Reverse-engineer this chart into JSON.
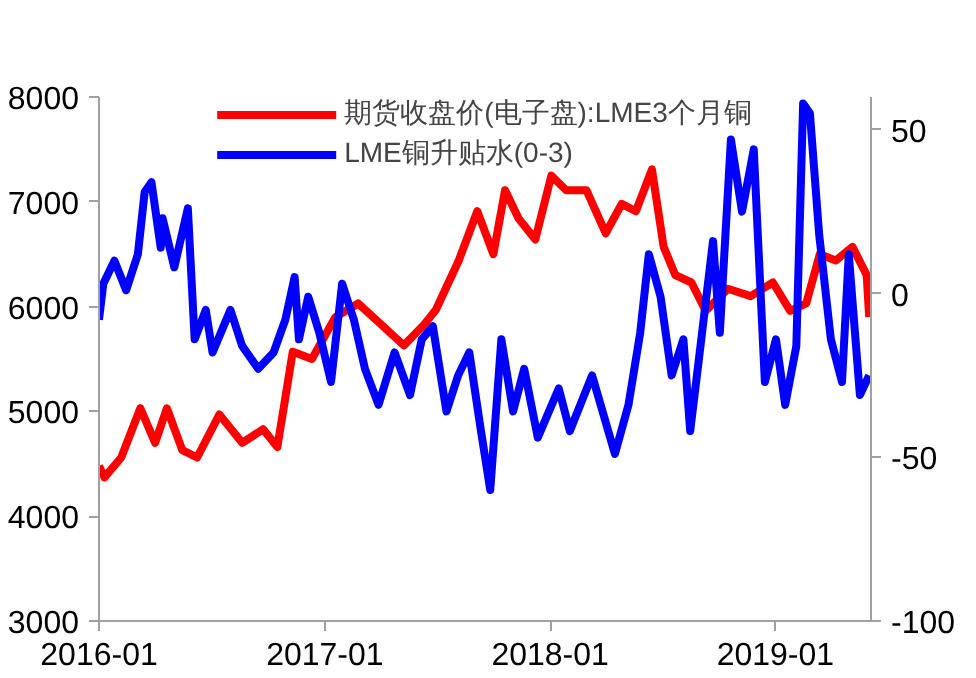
{
  "chart_data": {
    "type": "line",
    "legend": "top",
    "grid": false,
    "line_style": "solid",
    "marker": "none",
    "xlim": [
      "2016-01-01",
      "2019-06-05"
    ],
    "xticks": [
      "2016-01",
      "2017-01",
      "2018-01",
      "2019-01"
    ],
    "ylim": [
      3000,
      8000
    ],
    "yticks": [
      3000,
      4000,
      5000,
      6000,
      7000,
      8000
    ],
    "y2lim": [
      -100,
      60
    ],
    "y2ticks": [
      -100,
      -50,
      0,
      50
    ],
    "series": [
      {
        "name": "期货收盘价(电子盘):LME3个月铜",
        "color": "#ff0000",
        "x": [
          "2016-01-01",
          "2016-01-10",
          "2016-02-06",
          "2016-03-08",
          "2016-04-01",
          "2016-04-20",
          "2016-05-15",
          "2016-06-08",
          "2016-07-14",
          "2016-08-20",
          "2016-09-23",
          "2016-10-16",
          "2016-11-10",
          "2016-12-11",
          "2017-01-18",
          "2017-02-24",
          "2017-04-02",
          "2017-05-09",
          "2017-06-11",
          "2017-06-30",
          "2017-08-06",
          "2017-09-05",
          "2017-10-01",
          "2017-10-20",
          "2017-11-11",
          "2017-12-08",
          "2018-01-03",
          "2018-01-27",
          "2018-03-01",
          "2018-04-01",
          "2018-04-27",
          "2018-05-20",
          "2018-06-15",
          "2018-07-04",
          "2018-07-23",
          "2018-08-18",
          "2018-09-10",
          "2018-10-16",
          "2018-11-22",
          "2018-12-28",
          "2019-01-25",
          "2019-02-20",
          "2019-03-14",
          "2019-04-09",
          "2019-05-06",
          "2019-05-29",
          "2019-06-02"
        ],
        "values": [
          4480,
          4370,
          4560,
          5030,
          4700,
          5030,
          4630,
          4560,
          4970,
          4700,
          4830,
          4660,
          5570,
          5500,
          5900,
          6030,
          5830,
          5630,
          5830,
          5970,
          6440,
          6910,
          6500,
          7110,
          6840,
          6640,
          7250,
          7110,
          7110,
          6700,
          6980,
          6910,
          7310,
          6570,
          6300,
          6230,
          5960,
          6170,
          6100,
          6230,
          5960,
          6030,
          6500,
          6440,
          6570,
          6300,
          5900
        ]
      },
      {
        "name": "LME铜升贴水(0-3)",
        "color": "#0000ff",
        "axis": "y2",
        "x": [
          "2016-01-01",
          "2016-01-08",
          "2016-01-26",
          "2016-02-14",
          "2016-03-04",
          "2016-03-15",
          "2016-03-26",
          "2016-04-10",
          "2016-04-13",
          "2016-05-02",
          "2016-05-24",
          "2016-06-04",
          "2016-06-22",
          "2016-07-03",
          "2016-08-01",
          "2016-08-20",
          "2016-09-15",
          "2016-10-10",
          "2016-10-29",
          "2016-11-13",
          "2016-11-20",
          "2016-12-05",
          "2016-12-23",
          "2017-01-11",
          "2017-01-29",
          "2017-02-17",
          "2017-03-07",
          "2017-03-29",
          "2017-04-24",
          "2017-05-19",
          "2017-06-07",
          "2017-06-25",
          "2017-07-17",
          "2017-08-05",
          "2017-08-23",
          "2017-09-11",
          "2017-09-26",
          "2017-10-14",
          "2017-11-02",
          "2017-11-20",
          "2017-12-12",
          "2018-01-15",
          "2018-02-02",
          "2018-03-10",
          "2018-04-16",
          "2018-05-08",
          "2018-05-27",
          "2018-06-10",
          "2018-06-29",
          "2018-07-17",
          "2018-08-05",
          "2018-08-16",
          "2018-09-03",
          "2018-09-22",
          "2018-10-03",
          "2018-10-21",
          "2018-11-08",
          "2018-11-27",
          "2018-12-15",
          "2019-01-02",
          "2019-01-17",
          "2019-02-04",
          "2019-02-15",
          "2019-02-26",
          "2019-03-13",
          "2019-04-01",
          "2019-04-19",
          "2019-04-30",
          "2019-05-18",
          "2019-06-02"
        ],
        "values": [
          -8,
          3,
          10,
          1,
          12,
          31,
          34,
          14,
          23,
          8,
          26,
          -14,
          -5,
          -18,
          -5,
          -16,
          -23,
          -18,
          -8,
          5,
          -14,
          -1,
          -12,
          -27,
          3,
          -8,
          -23,
          -34,
          -18,
          -31,
          -14,
          -10,
          -36,
          -25,
          -18,
          -42,
          -60,
          -14,
          -36,
          -23,
          -44,
          -29,
          -42,
          -25,
          -49,
          -34,
          -12,
          12,
          -1,
          -25,
          -14,
          -42,
          -14,
          16,
          -12,
          47,
          25,
          44,
          -27,
          -14,
          -34,
          -16,
          58,
          55,
          18,
          -14,
          -27,
          12,
          -31,
          -25
        ]
      }
    ]
  }
}
